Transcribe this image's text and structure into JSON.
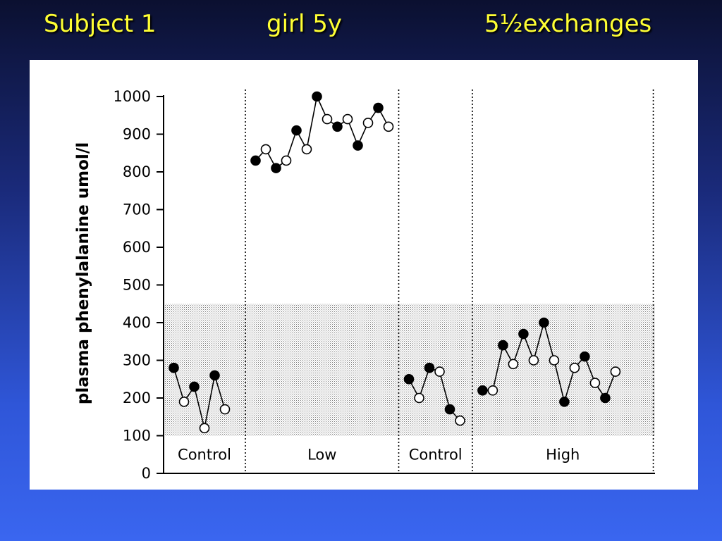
{
  "slide": {
    "title_subject": "Subject 1",
    "title_patient": "girl 5y",
    "title_exchanges": "5½exchanges"
  },
  "chart_data": {
    "type": "scatter",
    "ylabel": "plasma phenylalanine umol/l",
    "xlabel": "",
    "ylim": [
      0,
      1000
    ],
    "yticks": [
      0,
      100,
      200,
      300,
      400,
      500,
      600,
      700,
      800,
      900,
      1000
    ],
    "target_range": [
      100,
      450
    ],
    "phases": [
      {
        "label": "Control",
        "start": 0,
        "end": 8,
        "values": [
          280,
          190,
          230,
          120,
          260,
          170
        ],
        "filled": [
          true,
          false,
          true,
          false,
          true,
          false
        ]
      },
      {
        "label": "Low",
        "start": 8,
        "end": 23,
        "values": [
          830,
          860,
          810,
          830,
          910,
          860,
          1000,
          940,
          920,
          940,
          870,
          930,
          970,
          920
        ],
        "filled": [
          true,
          false,
          true,
          false,
          true,
          false,
          true,
          false,
          true,
          false,
          true,
          false,
          true,
          false
        ]
      },
      {
        "label": "Control",
        "start": 23,
        "end": 30.2,
        "values": [
          250,
          200,
          280,
          270,
          170,
          140
        ],
        "filled": [
          true,
          false,
          true,
          false,
          true,
          false
        ]
      },
      {
        "label": "High",
        "start": 30.2,
        "end": 47.9,
        "values": [
          220,
          220,
          340,
          290,
          370,
          300,
          400,
          300,
          190,
          280,
          310,
          240,
          200,
          270
        ],
        "filled": [
          true,
          false,
          true,
          false,
          true,
          false,
          true,
          false,
          true,
          false,
          true,
          false,
          true,
          false
        ]
      }
    ]
  }
}
